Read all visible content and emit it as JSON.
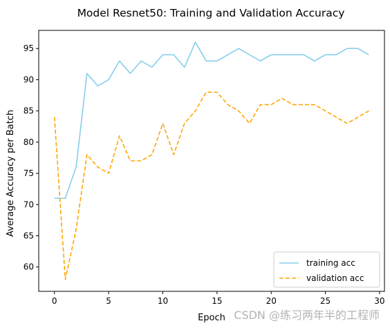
{
  "chart_data": {
    "type": "line",
    "title": "Model Resnet50: Training and Validation Accuracy",
    "xlabel": "Epoch",
    "ylabel": "Average Accuracy per Batch",
    "xlim": [
      -1.45,
      30.45
    ],
    "ylim": [
      56.1,
      97.9
    ],
    "xticks": [
      0,
      5,
      10,
      15,
      20,
      25,
      30
    ],
    "yticks": [
      60,
      65,
      70,
      75,
      80,
      85,
      90,
      95
    ],
    "grid": false,
    "legend_position": "lower right",
    "x": [
      0,
      1,
      2,
      3,
      4,
      5,
      6,
      7,
      8,
      9,
      10,
      11,
      12,
      13,
      14,
      15,
      16,
      17,
      18,
      19,
      20,
      21,
      22,
      23,
      24,
      25,
      26,
      27,
      28,
      29
    ],
    "series": [
      {
        "name": "training acc",
        "color": "#87ceeb",
        "style": "solid",
        "values": [
          71,
          71,
          76,
          91,
          89,
          90,
          93,
          91,
          93,
          92,
          94,
          94,
          92,
          96,
          93,
          93,
          94,
          95,
          94,
          93,
          94,
          94,
          94,
          94,
          93,
          94,
          94,
          95,
          95,
          94
        ]
      },
      {
        "name": "validation acc",
        "color": "#ffa500",
        "style": "dashed",
        "values": [
          84,
          58,
          66,
          78,
          76,
          75,
          81,
          77,
          77,
          78,
          83,
          78,
          83,
          85,
          88,
          88,
          86,
          85,
          83,
          86,
          86,
          87,
          86,
          86,
          86,
          85,
          84,
          83,
          84,
          85
        ]
      }
    ]
  },
  "watermark": "CSDN @练习两年半的工程师"
}
